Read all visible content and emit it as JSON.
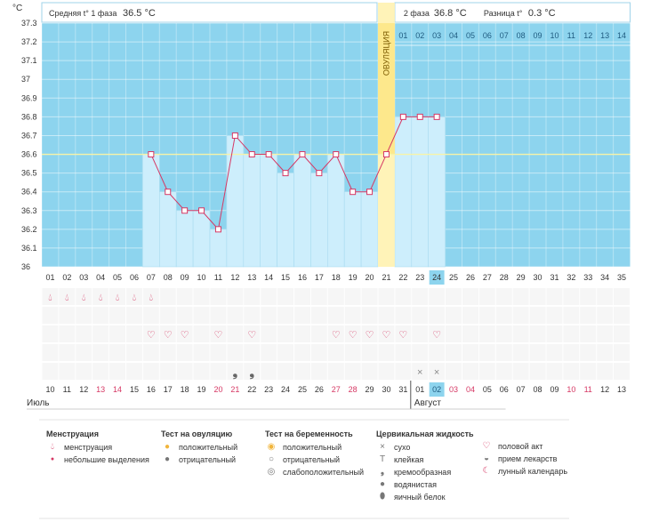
{
  "header": {
    "unit": "°C",
    "phase1_label": "Средняя t° 1 фаза",
    "phase1_value": "36.5 °C",
    "phase2_label": "2 фаза",
    "phase2_value": "36.8 °C",
    "diff_label": "Разница t°",
    "diff_value": "0.3 °C"
  },
  "chart_data": {
    "type": "line",
    "x": [
      7,
      8,
      9,
      10,
      11,
      12,
      13,
      14,
      15,
      16,
      17,
      18,
      19,
      20,
      21,
      22,
      23,
      24
    ],
    "values": [
      36.6,
      36.4,
      36.3,
      36.3,
      36.2,
      36.7,
      36.6,
      36.6,
      36.5,
      36.6,
      36.5,
      36.6,
      36.4,
      36.4,
      36.6,
      36.8,
      36.8,
      36.8
    ],
    "ylim": [
      36,
      37.3
    ],
    "yticks": [
      "37.3",
      "37.2",
      "37.1",
      "37",
      "36.9",
      "36.8",
      "36.7",
      "36.6",
      "36.5",
      "36.4",
      "36.3",
      "36.2",
      "36.1",
      "36"
    ],
    "cycle_days": [
      "01",
      "02",
      "03",
      "04",
      "05",
      "06",
      "07",
      "08",
      "09",
      "10",
      "11",
      "12",
      "13",
      "14",
      "15",
      "16",
      "17",
      "18",
      "19",
      "20",
      "21",
      "22",
      "23",
      "24",
      "25",
      "26",
      "27",
      "28",
      "29",
      "30",
      "31",
      "32",
      "33",
      "34",
      "35"
    ],
    "phase2_day_labels": [
      "01",
      "02",
      "03",
      "04",
      "05",
      "06",
      "07",
      "08",
      "09",
      "10",
      "11",
      "12",
      "13",
      "14"
    ],
    "phase2_start_day": 22,
    "ovulation_day": 21,
    "ovulation_label": "ОВУЛЯЦИЯ",
    "coverline": 36.6,
    "current_day": 24,
    "last_day": 24,
    "menstruation_days": [
      1,
      2,
      3,
      4,
      5,
      6,
      7
    ],
    "intercourse_days": [
      7,
      8,
      9,
      11,
      13,
      18,
      19,
      20,
      21,
      22,
      24
    ],
    "cervical_dry_days": [
      23,
      24
    ],
    "sticky_marks_days": [
      12,
      13
    ],
    "calendar_dates": [
      "10",
      "11",
      "12",
      "13",
      "14",
      "15",
      "16",
      "17",
      "18",
      "19",
      "20",
      "21",
      "22",
      "23",
      "24",
      "25",
      "26",
      "27",
      "28",
      "29",
      "30",
      "31",
      "01",
      "02",
      "03",
      "04",
      "05",
      "06",
      "07",
      "08",
      "09",
      "10",
      "11",
      "12",
      "13"
    ],
    "weekend_indices": [
      3,
      4,
      10,
      11,
      17,
      18,
      24,
      25,
      31,
      32
    ],
    "today_index": 23,
    "month1": "Июль",
    "month2": "Август"
  },
  "legend": {
    "menstruation": {
      "title": "Менструация",
      "items": [
        "менструация",
        "небольшие выделения"
      ]
    },
    "ovulation_test": {
      "title": "Тест на овуляцию",
      "items": [
        "положительный",
        "отрицательный"
      ]
    },
    "pregnancy_test": {
      "title": "Тест на беременность",
      "items": [
        "положительный",
        "отрицательный",
        "слабоположительный"
      ]
    },
    "cervical_fluid": {
      "title": "Цервикальная жидкость",
      "items": [
        "сухо",
        "клейкая",
        "кремообразная",
        "водянистая",
        "яичный белок"
      ]
    },
    "other": {
      "items": [
        "половой акт",
        "прием лекарств",
        "лунный календарь"
      ]
    }
  },
  "icons": [
    "drop-icon",
    "small-drop-icon",
    "sun-icon",
    "heart-icon",
    "cross-icon",
    "comma-icon",
    "pill-icon",
    "moon-icon"
  ]
}
